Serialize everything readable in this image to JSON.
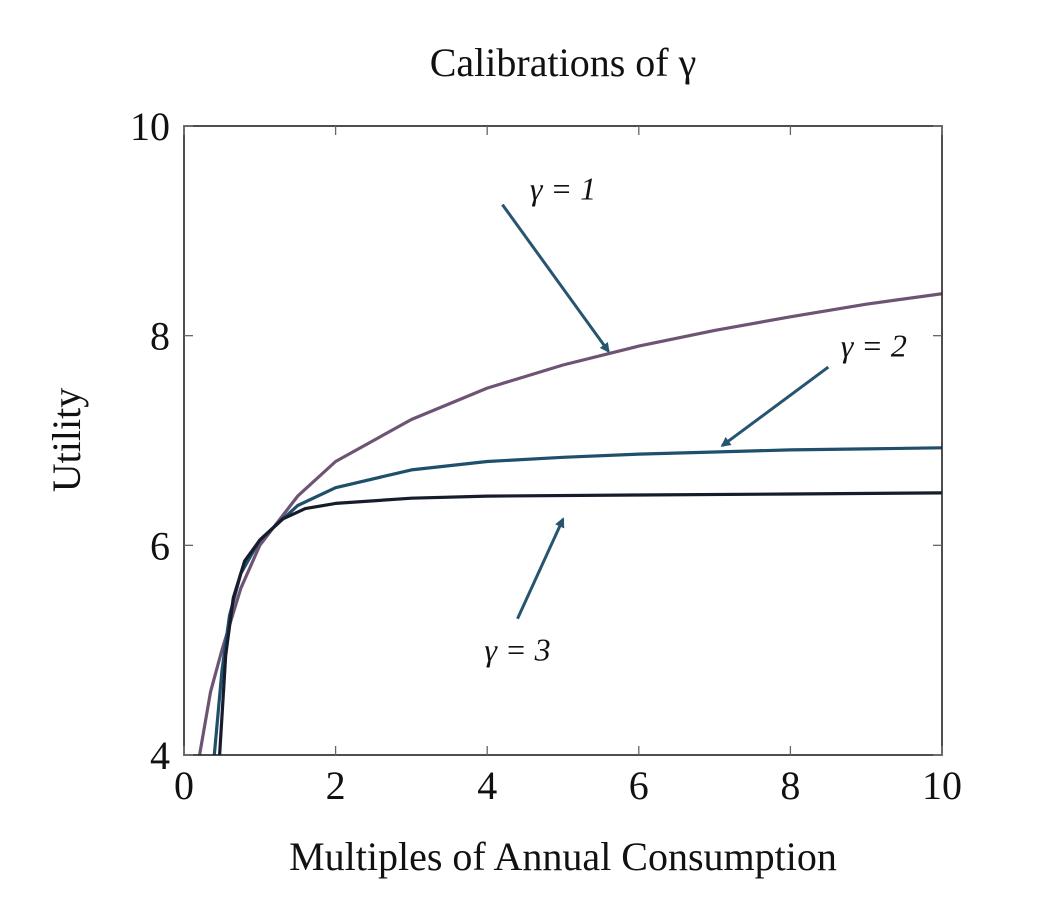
{
  "chart_data": {
    "type": "line",
    "title": "Calibrations of γ",
    "xlabel": "Multiples of Annual Consumption",
    "ylabel": "Utility",
    "xlim": [
      0,
      10
    ],
    "ylim": [
      4,
      10
    ],
    "xticks": [
      0,
      2,
      4,
      6,
      8,
      10
    ],
    "yticks": [
      4,
      6,
      8,
      10
    ],
    "grid": false,
    "series": [
      {
        "name": "γ = 1",
        "color": "#6e5474",
        "x": [
          0.2,
          0.35,
          0.5,
          0.75,
          1.0,
          1.5,
          2,
          3,
          4,
          5,
          6,
          7,
          8,
          9,
          10
        ],
        "y": [
          3.98,
          4.6,
          5.0,
          5.59,
          6.0,
          6.47,
          6.8,
          7.2,
          7.5,
          7.72,
          7.9,
          8.05,
          8.18,
          8.3,
          8.4
        ]
      },
      {
        "name": "γ = 2",
        "color": "#1f4f6b",
        "x": [
          0.4,
          0.5,
          0.6,
          0.75,
          1.0,
          1.5,
          2,
          3,
          4,
          5,
          6,
          7,
          8,
          9,
          10
        ],
        "y": [
          4.0,
          4.8,
          5.33,
          5.73,
          6.05,
          6.38,
          6.55,
          6.72,
          6.8,
          6.84,
          6.87,
          6.89,
          6.91,
          6.92,
          6.93
        ]
      },
      {
        "name": "γ = 3",
        "color": "#161c2b",
        "x": [
          0.47,
          0.55,
          0.65,
          0.8,
          1.0,
          1.3,
          1.6,
          2,
          3,
          4,
          6,
          8,
          10
        ],
        "y": [
          4.0,
          4.95,
          5.5,
          5.85,
          6.05,
          6.25,
          6.35,
          6.4,
          6.45,
          6.47,
          6.48,
          6.49,
          6.5
        ]
      }
    ],
    "annotations": [
      {
        "label": "γ = 1",
        "text_at": [
          5.0,
          9.3
        ],
        "arrow_from": [
          4.2,
          9.25
        ],
        "arrow_to": [
          5.6,
          7.85
        ],
        "color": "#27546f"
      },
      {
        "label": "γ = 2",
        "text_at": [
          9.1,
          7.8
        ],
        "arrow_from": [
          8.5,
          7.7
        ],
        "arrow_to": [
          7.1,
          6.95
        ],
        "color": "#27546f"
      },
      {
        "label": "γ = 3",
        "text_at": [
          4.4,
          4.9
        ],
        "arrow_from": [
          4.4,
          5.3
        ],
        "arrow_to": [
          5.0,
          6.25
        ],
        "color": "#27546f"
      }
    ]
  }
}
